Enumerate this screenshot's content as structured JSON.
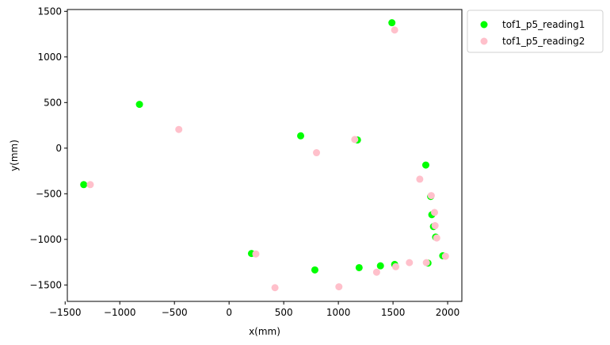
{
  "chart_data": {
    "type": "scatter",
    "title": "",
    "xlabel": "x(mm)",
    "ylabel": "y(mm)",
    "xlim": [
      -1480,
      2130
    ],
    "ylim": [
      -1680,
      1520
    ],
    "xticks": [
      -1500,
      -1000,
      -500,
      0,
      500,
      1000,
      1500,
      2000
    ],
    "yticks": [
      -1500,
      -1000,
      -500,
      0,
      500,
      1000,
      1500
    ],
    "grid": false,
    "legend_position": "outside-top-right",
    "series": [
      {
        "name": "tof1_p5_reading1",
        "color": "#00ff00",
        "points": [
          [
            -1330,
            -400
          ],
          [
            -820,
            480
          ],
          [
            205,
            -1155
          ],
          [
            655,
            135
          ],
          [
            785,
            -1335
          ],
          [
            1175,
            90
          ],
          [
            1190,
            -1310
          ],
          [
            1385,
            -1290
          ],
          [
            1490,
            1375
          ],
          [
            1515,
            -1275
          ],
          [
            1800,
            -185
          ],
          [
            1820,
            -1260
          ],
          [
            1845,
            -530
          ],
          [
            1855,
            -730
          ],
          [
            1870,
            -860
          ],
          [
            1890,
            -975
          ],
          [
            1955,
            -1180
          ]
        ]
      },
      {
        "name": "tof1_p5_reading2",
        "color": "#ffc0cb",
        "points": [
          [
            -1270,
            -400
          ],
          [
            -460,
            205
          ],
          [
            245,
            -1160
          ],
          [
            420,
            -1530
          ],
          [
            800,
            -50
          ],
          [
            1005,
            -1520
          ],
          [
            1150,
            95
          ],
          [
            1350,
            -1360
          ],
          [
            1515,
            1295
          ],
          [
            1525,
            -1300
          ],
          [
            1650,
            -1255
          ],
          [
            1745,
            -340
          ],
          [
            1805,
            -1255
          ],
          [
            1850,
            -520
          ],
          [
            1880,
            -705
          ],
          [
            1885,
            -850
          ],
          [
            1900,
            -985
          ],
          [
            1980,
            -1185
          ]
        ]
      }
    ]
  }
}
